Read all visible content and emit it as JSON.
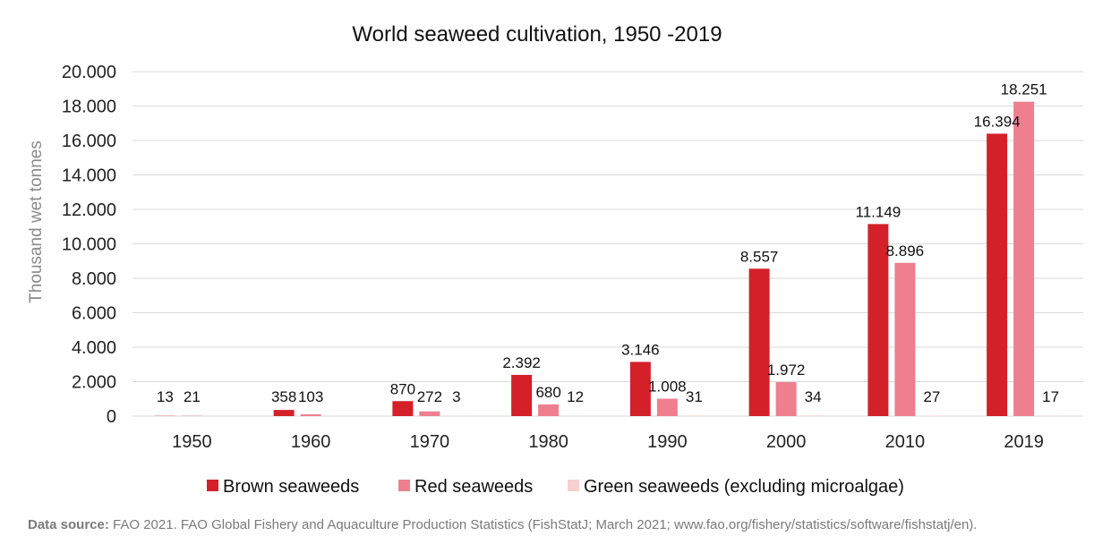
{
  "chart_data": {
    "type": "bar",
    "title": "World seaweed cultivation, 1950 -2019",
    "xlabel": "",
    "ylabel": "Thousand wet tonnes",
    "ylim": [
      0,
      20000
    ],
    "yticks": [
      0,
      2000,
      4000,
      6000,
      8000,
      10000,
      12000,
      14000,
      16000,
      18000,
      20000
    ],
    "ytick_labels": [
      "0",
      "2.000",
      "4.000",
      "6.000",
      "8.000",
      "10.000",
      "12.000",
      "14.000",
      "16.000",
      "18.000",
      "20.000"
    ],
    "grid": true,
    "legend_position": "bottom",
    "categories": [
      "1950",
      "1960",
      "1970",
      "1980",
      "1990",
      "2000",
      "2010",
      "2019"
    ],
    "series": [
      {
        "name": "Brown seaweeds",
        "color": "#d42029",
        "values": [
          13,
          358,
          870,
          2392,
          3146,
          8557,
          11149,
          16394
        ],
        "labels": [
          "13",
          "358",
          "870",
          "2.392",
          "3.146",
          "8.557",
          "11.149",
          "16.394"
        ]
      },
      {
        "name": "Red seaweeds",
        "color": "#ee7f8f",
        "values": [
          21,
          103,
          272,
          680,
          1008,
          1972,
          8896,
          18251
        ],
        "labels": [
          "21",
          "103",
          "272",
          "680",
          "1.008",
          "1.972",
          "8.896",
          "18.251"
        ]
      },
      {
        "name": "Green seaweeds (excluding microalgae)",
        "color": "#f8cfcf",
        "values": [
          null,
          null,
          3,
          12,
          31,
          34,
          27,
          17
        ],
        "labels": [
          "",
          "",
          "3",
          "12",
          "31",
          "34",
          "27",
          "17"
        ]
      }
    ]
  },
  "source": {
    "label": "Data source:",
    "text": " FAO 2021. FAO Global Fishery and Aquaculture Production Statistics (FishStatJ; March 2021; www.fao.org/fishery/statistics/software/fishstatj/en)."
  }
}
